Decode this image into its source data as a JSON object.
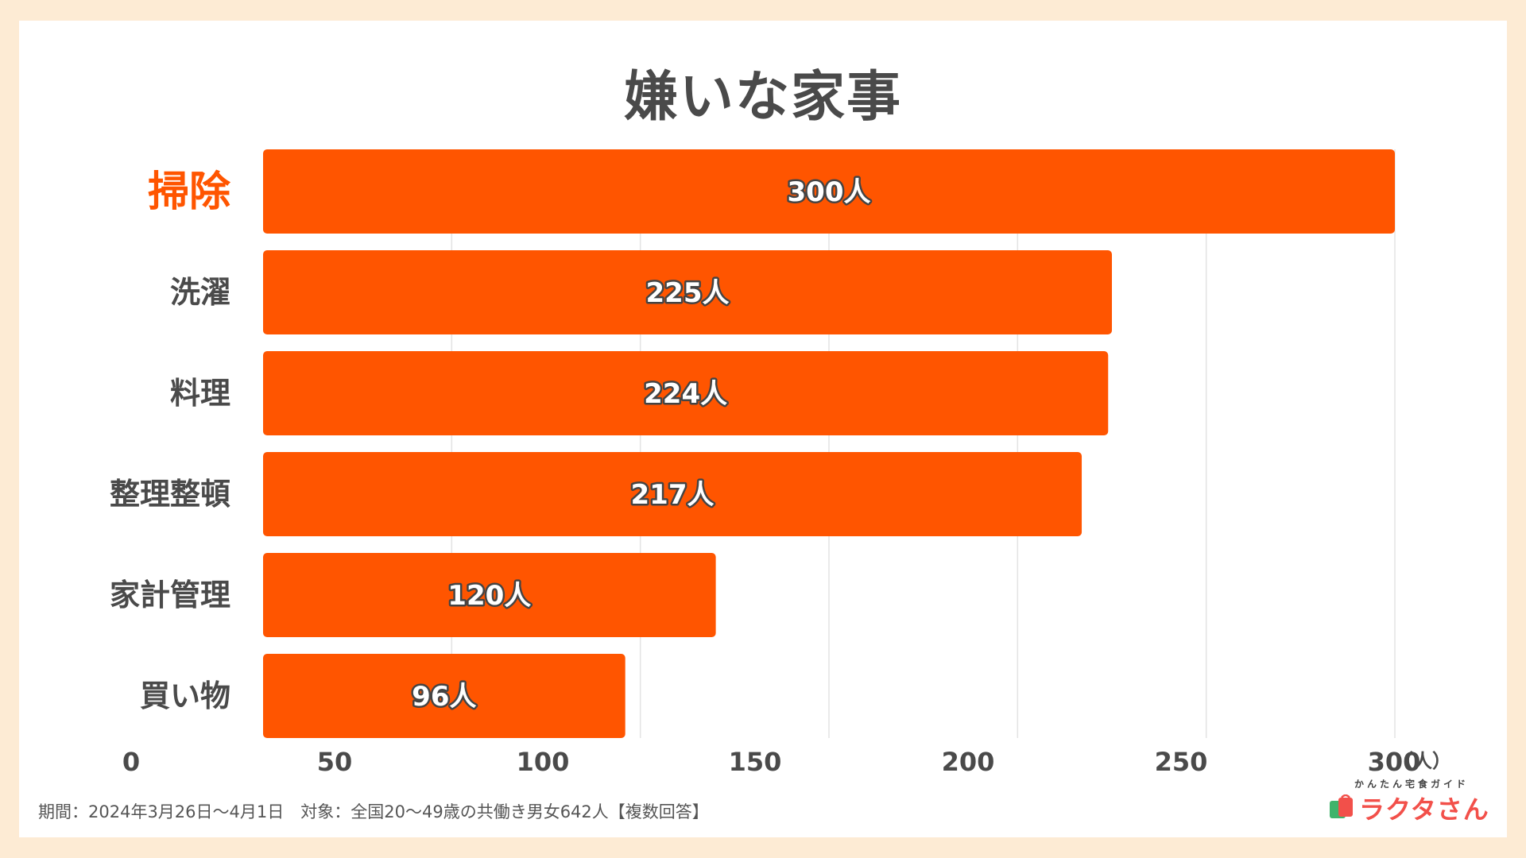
{
  "title": "嫌いな家事",
  "note": "期間：2024年3月26日〜4月1日　対象：全国20〜49歳の共働き男女642人【複数回答】",
  "logo": {
    "sub": "かんたん宅食ガイド",
    "main": "ラクタさん"
  },
  "colors": {
    "bar": "#ff5500",
    "highlight_label": "#ff5500",
    "label": "#4a4a4a",
    "grid": "#e3e3e3",
    "bar_text": "#ffffff",
    "bar_text_outline": "#444444"
  },
  "chart_data": {
    "type": "bar",
    "orientation": "horizontal",
    "categories": [
      "掃除",
      "洗濯",
      "料理",
      "整理整頓",
      "家計管理",
      "買い物"
    ],
    "values": [
      300,
      225,
      224,
      217,
      120,
      96
    ],
    "data_labels": [
      "300人",
      "225人",
      "224人",
      "217人",
      "120人",
      "96人"
    ],
    "highlight_index": 0,
    "xlim": [
      0,
      300
    ],
    "x_ticks": [
      0,
      50,
      100,
      150,
      200,
      250,
      300
    ],
    "x_tick_labels": [
      "0",
      "50",
      "100",
      "150",
      "200",
      "250",
      "300"
    ],
    "x_unit": "（人）",
    "grid": true
  }
}
